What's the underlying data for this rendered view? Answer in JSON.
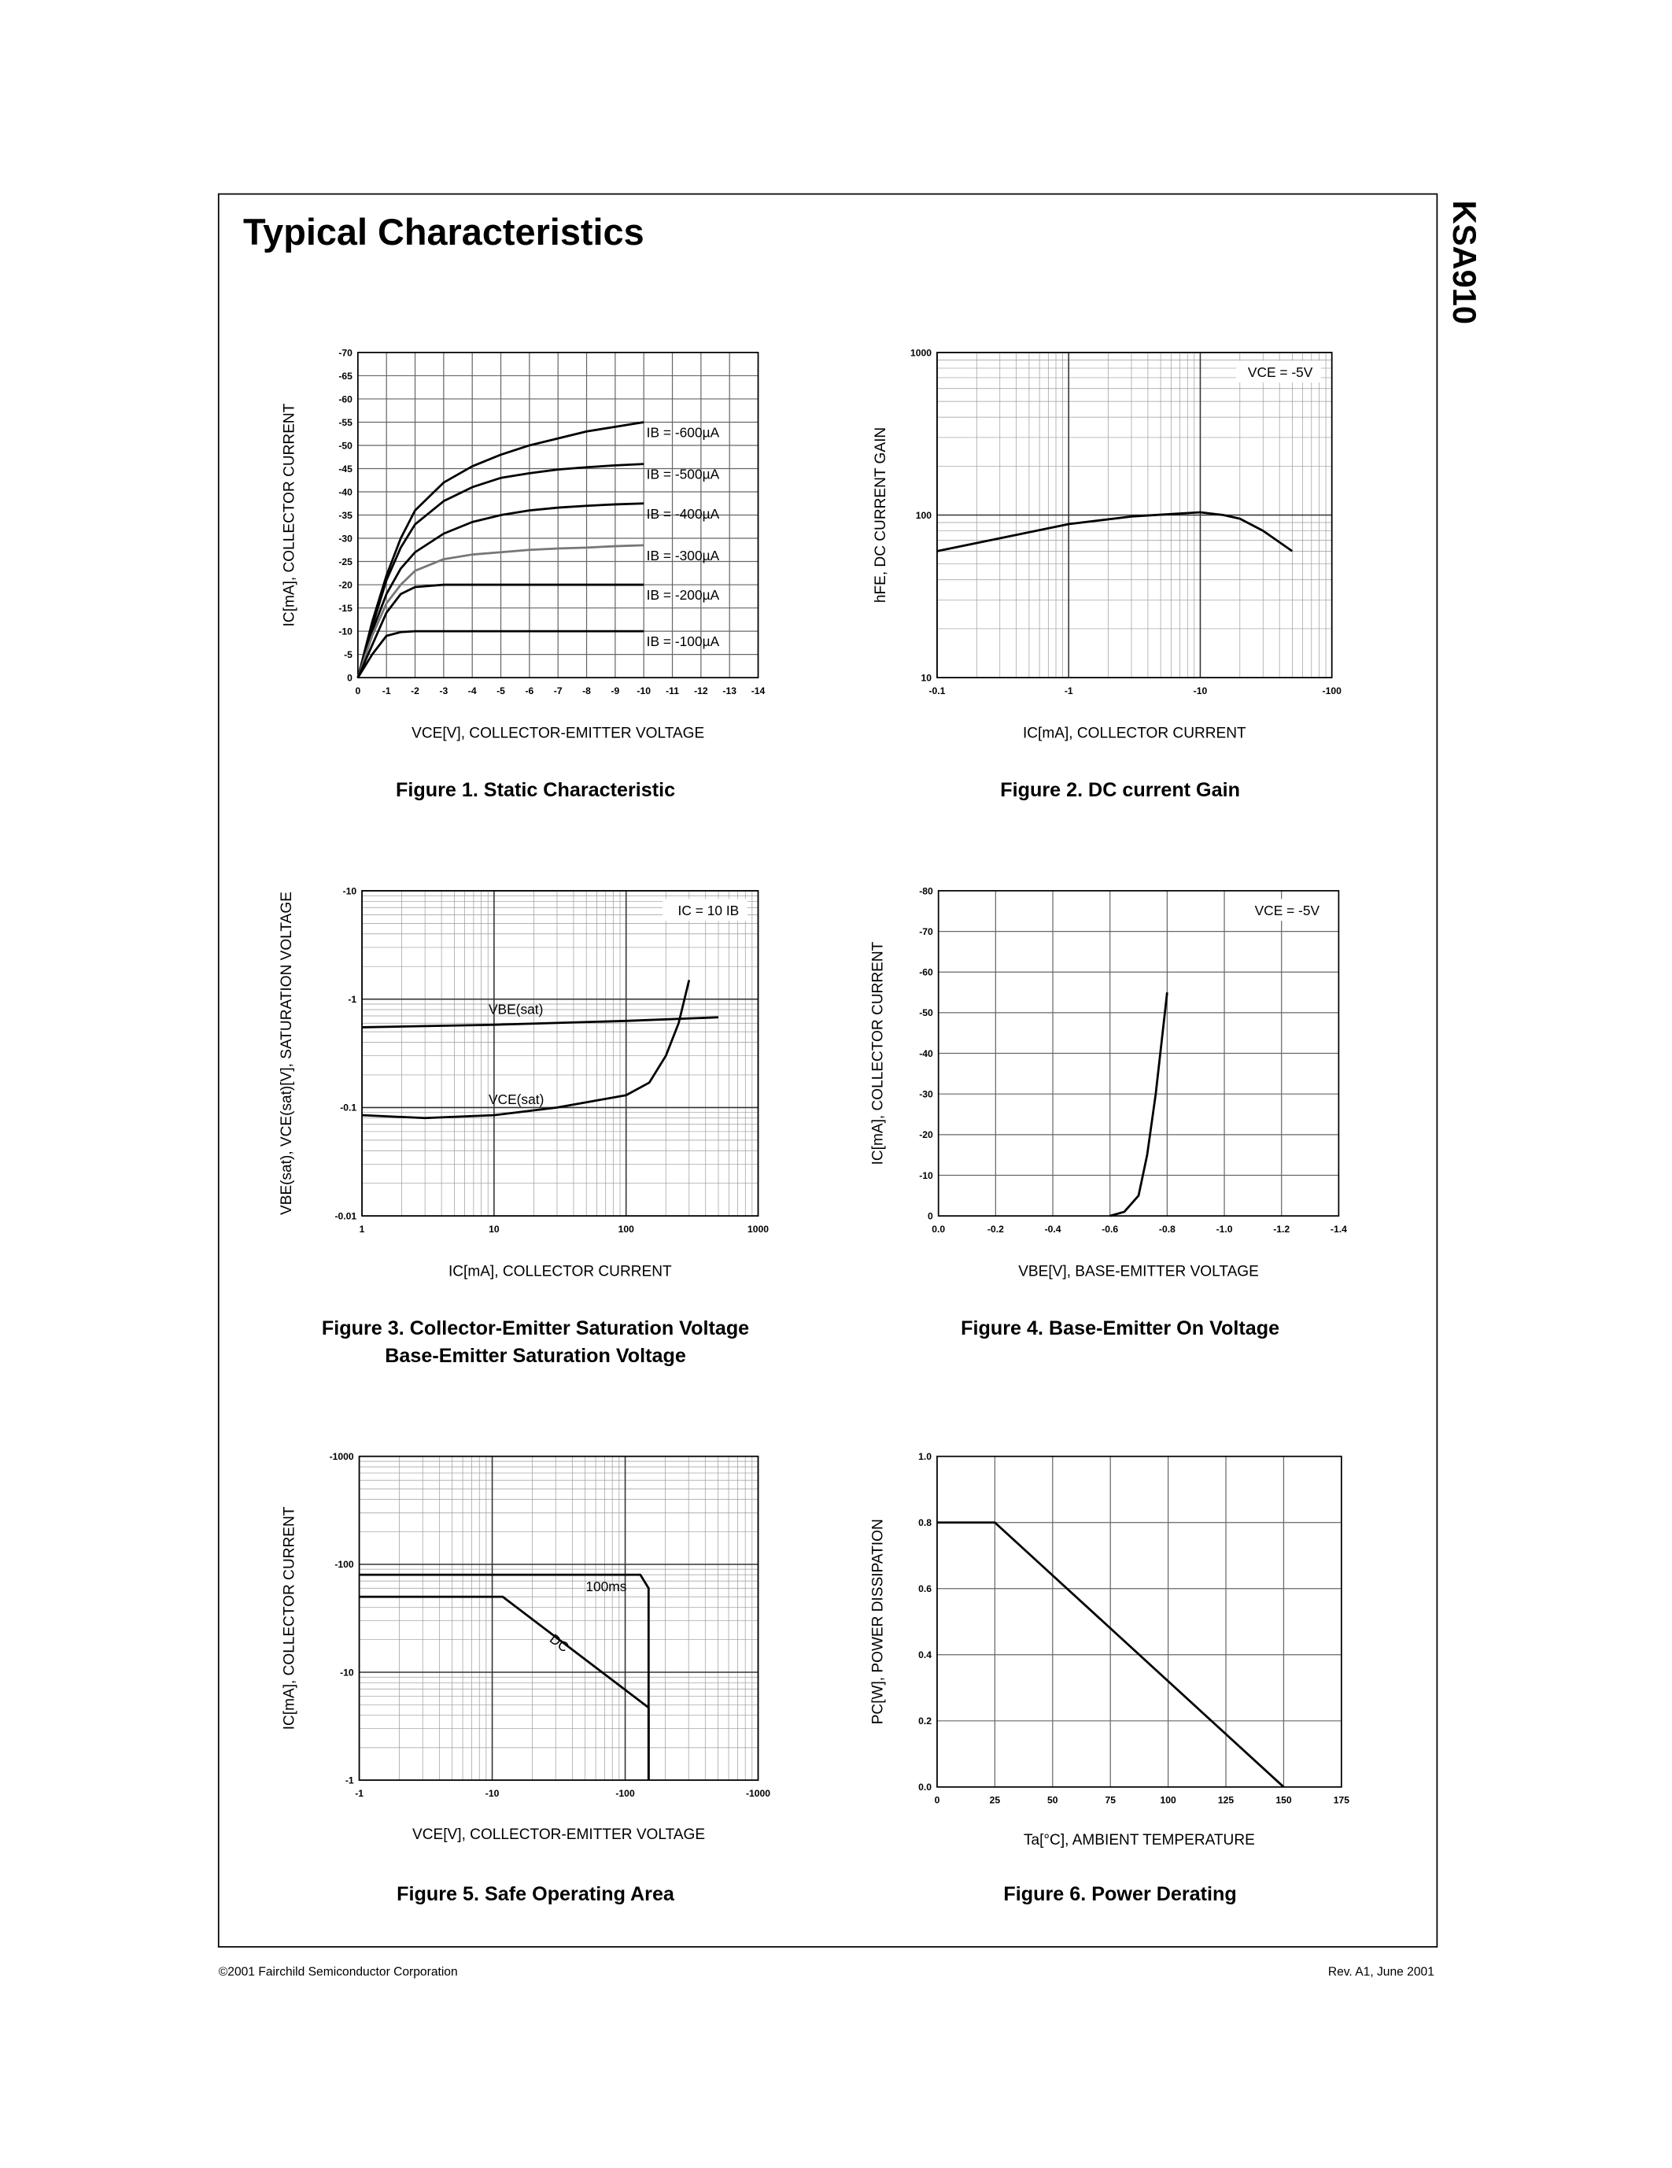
{
  "header": {
    "title": "Typical Characteristics",
    "part_number": "KSA910"
  },
  "footer": {
    "copyright": "©2001 Fairchild Semiconductor Corporation",
    "revision": "Rev. A1, June 2001"
  },
  "chart_data": [
    {
      "type": "line",
      "caption": "Figure 1. Static Characteristic",
      "xlabel": "VCE[V], COLLECTOR-EMITTER VOLTAGE",
      "ylabel": "IC[mA], COLLECTOR CURRENT",
      "xlim": [
        0,
        -14
      ],
      "ylim": [
        0,
        -70
      ],
      "xticks": [
        0,
        -1,
        -2,
        -3,
        -4,
        -5,
        -6,
        -7,
        -8,
        -9,
        -10,
        -11,
        -12,
        -13,
        -14
      ],
      "yticks": [
        0,
        -5,
        -10,
        -15,
        -20,
        -25,
        -30,
        -35,
        -40,
        -45,
        -50,
        -55,
        -60,
        -65,
        -70
      ],
      "grid": true,
      "x": [
        0,
        -0.5,
        -1,
        -1.5,
        -2,
        -3,
        -4,
        -5,
        -6,
        -7,
        -8,
        -9,
        -10
      ],
      "series": [
        {
          "name": "IB = -600µA",
          "color": "#000000",
          "values": [
            0,
            -12,
            -22,
            -30,
            -36,
            -42,
            -45.5,
            -48,
            -50,
            -51.5,
            -53,
            -54,
            -55
          ]
        },
        {
          "name": "IB = -500µA",
          "color": "#000000",
          "values": [
            0,
            -11,
            -21,
            -28,
            -33,
            -38,
            -41,
            -43,
            -44,
            -44.8,
            -45.3,
            -45.7,
            -46
          ]
        },
        {
          "name": "IB = -400µA",
          "color": "#000000",
          "values": [
            0,
            -10,
            -18,
            -23.5,
            -27,
            -31,
            -33.5,
            -35,
            -36,
            -36.6,
            -37,
            -37.3,
            -37.5
          ]
        },
        {
          "name": "IB = -300µA",
          "color": "#777777",
          "values": [
            0,
            -9,
            -16,
            -20,
            -23,
            -25.5,
            -26.5,
            -27,
            -27.5,
            -27.8,
            -28,
            -28.3,
            -28.5
          ]
        },
        {
          "name": "IB = -200µA",
          "color": "#000000",
          "values": [
            0,
            -7,
            -14,
            -18,
            -19.5,
            -20,
            -20,
            -20,
            -20,
            -20,
            -20,
            -20,
            -20
          ]
        },
        {
          "name": "IB = -100µA",
          "color": "#000000",
          "values": [
            0,
            -5,
            -9,
            -9.8,
            -10,
            -10,
            -10,
            -10,
            -10,
            -10,
            -10,
            -10,
            -10
          ]
        }
      ]
    },
    {
      "type": "line",
      "caption": "Figure 2. DC current Gain",
      "xlabel": "IC[mA], COLLECTOR CURRENT",
      "ylabel": "hFE, DC CURRENT GAIN",
      "annotation": "VCE = -5V",
      "xscale": "log",
      "yscale": "log",
      "xlim": [
        -0.1,
        -100
      ],
      "ylim": [
        10,
        1000
      ],
      "xticks": [
        -0.1,
        -1,
        -10,
        -100
      ],
      "yticks": [
        10,
        100,
        1000
      ],
      "grid": true,
      "x": [
        -0.1,
        -0.3,
        -1,
        -3,
        -10,
        -15,
        -20,
        -30,
        -50
      ],
      "values": [
        60,
        72,
        88,
        98,
        104,
        100,
        95,
        80,
        60
      ],
      "color": "#000000"
    },
    {
      "type": "line",
      "caption": [
        "Figure 3. Collector-Emitter Saturation Voltage",
        "Base-Emitter Saturation Voltage"
      ],
      "xlabel": "IC[mA], COLLECTOR CURRENT",
      "ylabel": "VBE(sat), VCE(sat)[V], SATURATION VOLTAGE",
      "annotation": "IC = 10 IB",
      "xscale": "log",
      "yscale": "log",
      "xlim": [
        1,
        1000
      ],
      "ylim": [
        -0.01,
        -10
      ],
      "xticks": [
        1,
        10,
        100,
        1000
      ],
      "yticks": [
        -0.01,
        -0.1,
        -1,
        -10
      ],
      "grid": true,
      "series": [
        {
          "name": "VBE(sat)",
          "color": "#000000",
          "x": [
            1,
            10,
            100,
            500
          ],
          "values": [
            -0.55,
            -0.58,
            -0.63,
            -0.68
          ]
        },
        {
          "name": "VCE(sat)",
          "color": "#000000",
          "x": [
            1,
            3,
            10,
            30,
            100,
            150,
            200,
            250,
            300
          ],
          "values": [
            -0.085,
            -0.08,
            -0.085,
            -0.1,
            -0.13,
            -0.17,
            -0.3,
            -0.6,
            -1.5
          ]
        }
      ]
    },
    {
      "type": "line",
      "caption": "Figure 4. Base-Emitter On Voltage",
      "xlabel": "VBE[V], BASE-EMITTER VOLTAGE",
      "ylabel": "IC[mA], COLLECTOR CURRENT",
      "annotation": "VCE = -5V",
      "xlim": [
        0,
        -1.4
      ],
      "ylim": [
        0,
        -80
      ],
      "xticks": [
        {
          "value": 0,
          "label": "0.0"
        },
        -0.2,
        -0.4,
        -0.6,
        -0.8,
        {
          "value": -1,
          "label": "-1.0"
        },
        -1.2,
        -1.4
      ],
      "yticks": [
        0,
        -10,
        -20,
        -30,
        -40,
        -50,
        -60,
        -70,
        -80
      ],
      "grid": true,
      "x": [
        -0.6,
        -0.65,
        -0.7,
        -0.73,
        -0.76,
        -0.8
      ],
      "values": [
        0,
        -1,
        -5,
        -15,
        -30,
        -55
      ],
      "color": "#000000"
    },
    {
      "type": "line",
      "caption": "Figure 5. Safe Operating Area",
      "xlabel": "VCE[V], COLLECTOR-EMITTER VOLTAGE",
      "ylabel": "IC[mA], COLLECTOR CURRENT",
      "xscale": "log",
      "yscale": "log",
      "xlim": [
        -1,
        -1000
      ],
      "ylim": [
        -1,
        -1000
      ],
      "xticks": [
        -1,
        -10,
        -100,
        -1000
      ],
      "yticks": [
        -1,
        -10,
        -100,
        -1000
      ],
      "grid": true,
      "series": [
        {
          "name": "100ms",
          "color": "#000000",
          "x": [
            -1,
            -130,
            -150,
            -150
          ],
          "values": [
            -80,
            -80,
            -60,
            -1
          ]
        },
        {
          "name": "DC",
          "color": "#000000",
          "x": [
            -1,
            -12,
            -150,
            -150
          ],
          "values": [
            -50,
            -50,
            -4.7,
            -1
          ]
        }
      ]
    },
    {
      "type": "line",
      "caption": "Figure 6. Power Derating",
      "xlabel": "Ta[°C], AMBIENT TEMPERATURE",
      "ylabel": "PC[W], POWER DISSIPATION",
      "xlim": [
        0,
        175
      ],
      "ylim": [
        0,
        1
      ],
      "xticks": [
        0,
        25,
        50,
        75,
        100,
        125,
        150,
        175
      ],
      "yticks": [
        {
          "value": 0,
          "label": "0.0"
        },
        0.2,
        0.4,
        0.6,
        0.8,
        {
          "value": 1,
          "label": "1.0"
        }
      ],
      "grid": true,
      "x": [
        0,
        25,
        150
      ],
      "values": [
        0.8,
        0.8,
        0
      ],
      "color": "#000000"
    }
  ]
}
